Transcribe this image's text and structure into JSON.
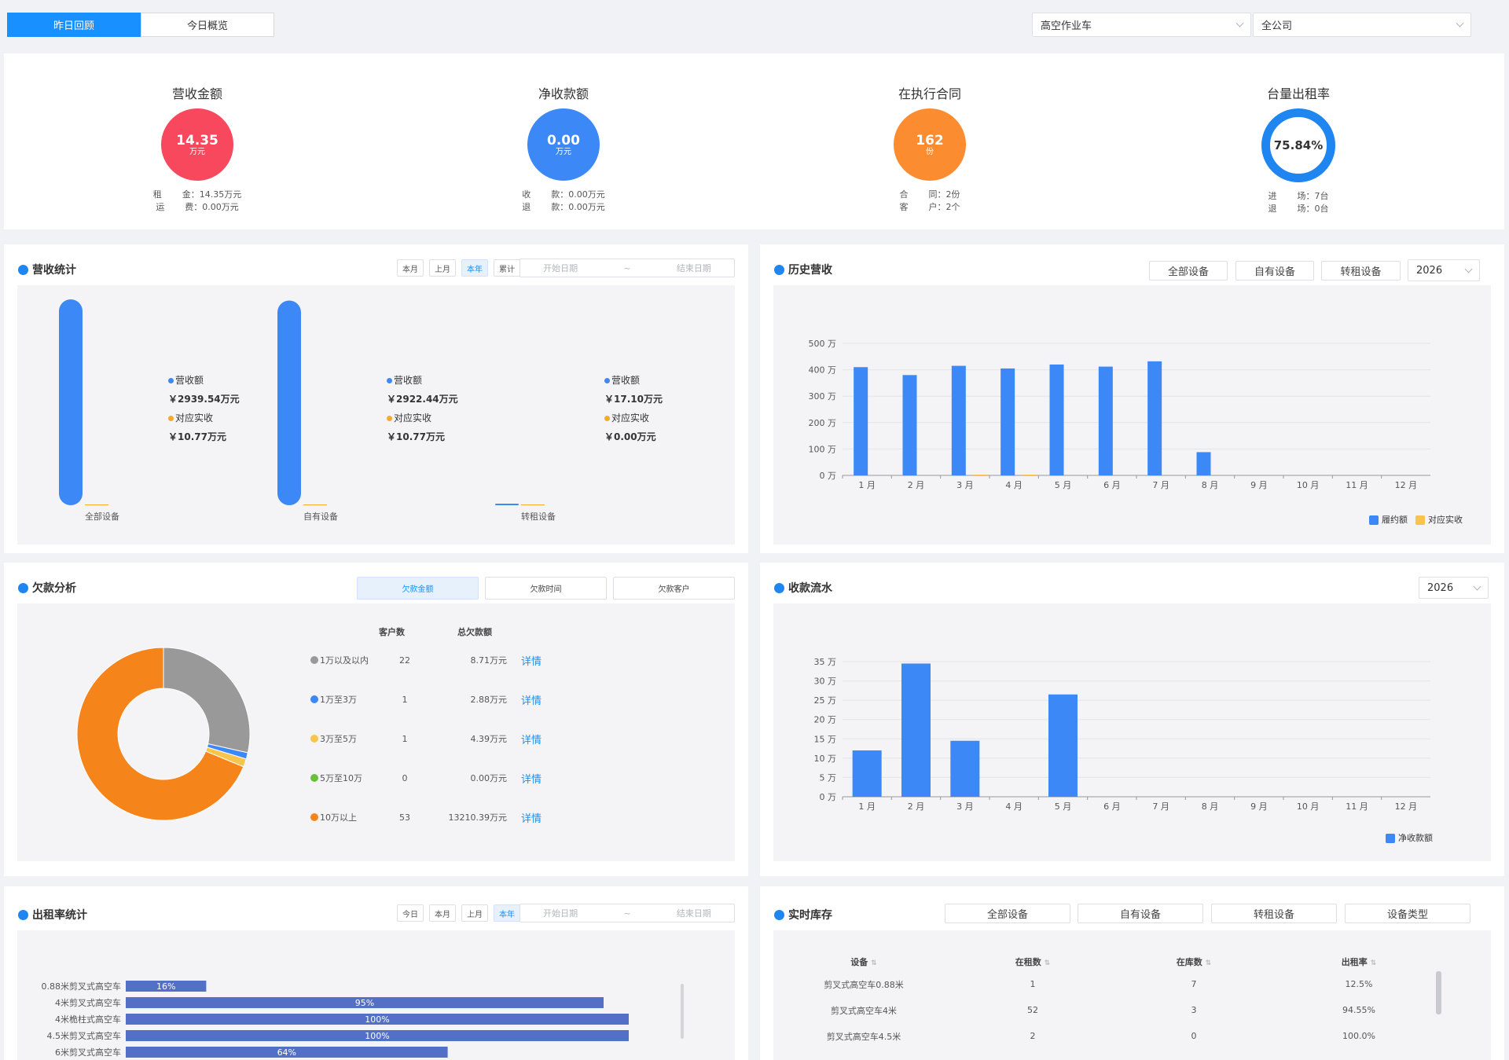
{
  "tabs": [
    {
      "label": "昨日回顾",
      "active": true
    },
    {
      "label": "今日概览",
      "active": false
    }
  ],
  "filters": {
    "equipment_type": "高空作业车",
    "company": "全公司"
  },
  "kpis": {
    "revenue": {
      "title": "营收金额",
      "value": "14.35",
      "unit": "万元",
      "color": "#f7485e",
      "rows": [
        {
          "label": "租金",
          "value": "14.35万元"
        },
        {
          "label": "运费",
          "value": "0.00万元"
        }
      ]
    },
    "net_receipt": {
      "title": "净收款额",
      "value": "0.00",
      "unit": "万元",
      "color": "#3c88f6",
      "rows": [
        {
          "label": "收款",
          "value": "0.00万元"
        },
        {
          "label": "退款",
          "value": "0.00万元"
        }
      ]
    },
    "contracts": {
      "title": "在执行合同",
      "value": "162",
      "unit": "份",
      "color": "#fb8c30",
      "rows": [
        {
          "label": "合同",
          "value": "2份"
        },
        {
          "label": "客户",
          "value": "2个"
        }
      ]
    },
    "rental_rate": {
      "title": "台量出租率",
      "value": "75.84%",
      "fraction": 0.7584,
      "rows": [
        {
          "label": "进场",
          "value": "7台"
        },
        {
          "label": "退场",
          "value": "0台"
        }
      ]
    }
  },
  "revenue_stats": {
    "title": "营收统计",
    "buttons": [
      {
        "label": "本月",
        "active": false
      },
      {
        "label": "上月",
        "active": false
      },
      {
        "label": "本年",
        "active": true
      },
      {
        "label": "累计",
        "active": false
      }
    ],
    "start_placeholder": "开始日期",
    "sep": "~",
    "end_placeholder": "结束日期",
    "groups": [
      {
        "name": "全部设备",
        "rev_label": "营收额",
        "rev_value": "￥2939.54万元",
        "rec_label": "对应实收",
        "rec_value": "￥10.77万元",
        "rev": 2939.54,
        "rec": 10.77
      },
      {
        "name": "自有设备",
        "rev_label": "营收额",
        "rev_value": "￥2922.44万元",
        "rec_label": "对应实收",
        "rec_value": "￥10.77万元",
        "rev": 2922.44,
        "rec": 10.77
      },
      {
        "name": "转租设备",
        "rev_label": "营收额",
        "rev_value": "￥17.10万元",
        "rec_label": "对应实收",
        "rec_value": "￥0.00万元",
        "rev": 17.1,
        "rec": 0
      }
    ]
  },
  "history": {
    "title": "历史营收",
    "buttons": [
      "全部设备",
      "自有设备",
      "转租设备"
    ],
    "year": "2026",
    "legend": [
      {
        "name": "履约额",
        "color": "#3c88f6"
      },
      {
        "name": "对应实收",
        "color": "#f7c54c"
      }
    ]
  },
  "debt": {
    "title": "欠款分析",
    "buttons": [
      {
        "label": "欠款金额",
        "active": true
      },
      {
        "label": "欠款时间",
        "active": false
      },
      {
        "label": "欠款客户",
        "active": false
      }
    ],
    "headers": {
      "count": "客户数",
      "amount": "总欠款额"
    },
    "detail_label": "详情",
    "rows": [
      {
        "range": "1万以及以内",
        "count": "22",
        "amount": "8.71万元",
        "color": "#999999"
      },
      {
        "range": "1万至3万",
        "count": "1",
        "amount": "2.88万元",
        "color": "#3c88f6"
      },
      {
        "range": "3万至5万",
        "count": "1",
        "amount": "4.39万元",
        "color": "#f7c54c"
      },
      {
        "range": "5万至10万",
        "count": "0",
        "amount": "0.00万元",
        "color": "#67c23a"
      },
      {
        "range": "10万以上",
        "count": "53",
        "amount": "13210.39万元",
        "color": "#f5841b"
      }
    ]
  },
  "cashflow": {
    "title": "收款流水",
    "year": "2026",
    "legend": [
      {
        "name": "净收款额",
        "color": "#3c88f6"
      }
    ]
  },
  "rental_stats": {
    "title": "出租率统计",
    "buttons": [
      {
        "label": "今日",
        "active": false
      },
      {
        "label": "本月",
        "active": false
      },
      {
        "label": "上月",
        "active": false
      },
      {
        "label": "本年",
        "active": true
      }
    ],
    "start_placeholder": "开始日期",
    "sep": "~",
    "end_placeholder": "结束日期"
  },
  "inventory": {
    "title": "实时库存",
    "buttons": [
      "全部设备",
      "自有设备",
      "转租设备",
      "设备类型"
    ],
    "headers": [
      "设备",
      "在租数",
      "在库数",
      "出租率"
    ],
    "rows": [
      [
        "剪叉式高空车0.88米",
        "1",
        "7",
        "12.5%"
      ],
      [
        "剪叉式高空车4米",
        "52",
        "3",
        "94.55%"
      ],
      [
        "剪叉式高空车4.5米",
        "2",
        "0",
        "100.0%"
      ]
    ]
  },
  "chart_data": [
    {
      "type": "bar",
      "title": "营收统计",
      "categories": [
        "全部设备",
        "自有设备",
        "转租设备"
      ],
      "series": [
        {
          "name": "营收额",
          "values": [
            2939.54,
            2922.44,
            17.1
          ]
        },
        {
          "name": "对应实收",
          "values": [
            10.77,
            10.77,
            0.0
          ]
        }
      ]
    },
    {
      "type": "bar",
      "title": "历史营收",
      "categories": [
        "1月",
        "2月",
        "3月",
        "4月",
        "5月",
        "6月",
        "7月",
        "8月",
        "9月",
        "10月",
        "11月",
        "12月"
      ],
      "tick_labels": [
        "1 月",
        "2 月",
        "3 月",
        "4 月",
        "5 月",
        "6 月",
        "7 月",
        "8 月",
        "9 月",
        "10 月",
        "11 月",
        "12 月"
      ],
      "series": [
        {
          "name": "履约额",
          "values": [
            410,
            380,
            415,
            405,
            420,
            412,
            432,
            88,
            0,
            0,
            0,
            0
          ]
        },
        {
          "name": "对应实收",
          "values": [
            0,
            0,
            1,
            1,
            0,
            0,
            0,
            0,
            0,
            0,
            0,
            0
          ]
        }
      ],
      "yticks": [
        "0 万",
        "100 万",
        "200 万",
        "300 万",
        "400 万",
        "500 万"
      ],
      "ylim": [
        0,
        500
      ],
      "grid": true,
      "legend": "bottom-right"
    },
    {
      "type": "pie",
      "title": "欠款分析",
      "categories": [
        "1万以及以内",
        "1万至3万",
        "3万至5万",
        "5万至10万",
        "10万以上"
      ],
      "values": [
        28.5,
        1.2,
        1.5,
        0,
        68.8
      ],
      "donut": true
    },
    {
      "type": "bar",
      "title": "收款流水",
      "categories": [
        "1月",
        "2月",
        "3月",
        "4月",
        "5月",
        "6月",
        "7月",
        "8月",
        "9月",
        "10月",
        "11月",
        "12月"
      ],
      "tick_labels": [
        "1 月",
        "2 月",
        "3 月",
        "4 月",
        "5 月",
        "6 月",
        "7 月",
        "8 月",
        "9 月",
        "10 月",
        "11 月",
        "12 月"
      ],
      "series": [
        {
          "name": "净收款额",
          "values": [
            12,
            34.5,
            14.5,
            0,
            26.5,
            0,
            0,
            0,
            0,
            0,
            0,
            0
          ]
        }
      ],
      "yticks": [
        "0 万",
        "5 万",
        "10 万",
        "15 万",
        "20 万",
        "25 万",
        "30 万",
        "35 万"
      ],
      "ylim": [
        0,
        35
      ],
      "grid": true,
      "legend": "bottom-right"
    },
    {
      "type": "bar",
      "orientation": "horizontal",
      "title": "出租率统计",
      "categories": [
        "0.88米剪叉式高空车",
        "4米剪叉式高空车",
        "4米桅柱式高空车",
        "4.5米剪叉式高空车",
        "6米剪叉式高空车"
      ],
      "values": [
        16,
        95,
        100,
        100,
        64
      ],
      "labels": [
        "16%",
        "95%",
        "100%",
        "100%",
        "64%"
      ]
    }
  ]
}
